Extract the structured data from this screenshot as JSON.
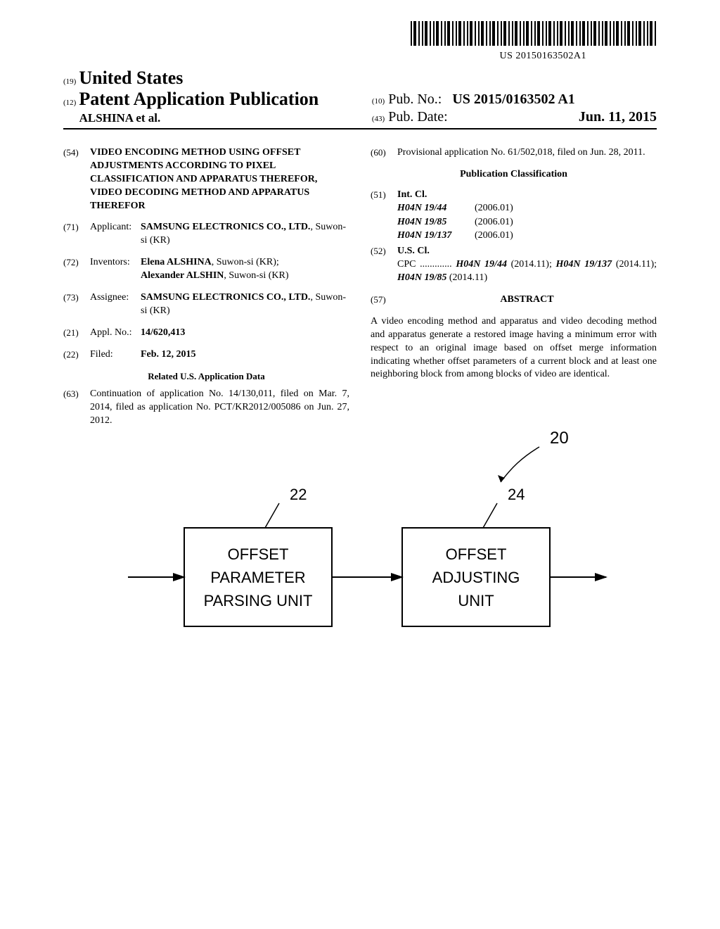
{
  "barcode_number": "US 20150163502A1",
  "header": {
    "country_code": "(19)",
    "country": "United States",
    "pubtype_code": "(12)",
    "pubtype": "Patent Application Publication",
    "authors": "ALSHINA et al.",
    "pubno_code": "(10)",
    "pubno_label": "Pub. No.:",
    "pubno_value": "US 2015/0163502 A1",
    "pubdate_code": "(43)",
    "pubdate_label": "Pub. Date:",
    "pubdate_value": "Jun. 11, 2015"
  },
  "left": {
    "title_code": "(54)",
    "title": "VIDEO ENCODING METHOD USING OFFSET ADJUSTMENTS ACCORDING TO PIXEL CLASSIFICATION AND APPARATUS THEREFOR, VIDEO DECODING METHOD AND APPARATUS THEREFOR",
    "applicant_code": "(71)",
    "applicant_label": "Applicant:",
    "applicant_name": "SAMSUNG ELECTRONICS CO., LTD.",
    "applicant_addr": ", Suwon-si (KR)",
    "inventors_code": "(72)",
    "inventors_label": "Inventors:",
    "inventor1_name": "Elena ALSHINA",
    "inventor1_addr": ", Suwon-si (KR);",
    "inventor2_name": "Alexander ALSHIN",
    "inventor2_addr": ", Suwon-si (KR)",
    "assignee_code": "(73)",
    "assignee_label": "Assignee:",
    "assignee_name": "SAMSUNG ELECTRONICS CO., LTD.",
    "assignee_addr": ", Suwon-si (KR)",
    "applno_code": "(21)",
    "applno_label": "Appl. No.:",
    "applno_value": "14/620,413",
    "filed_code": "(22)",
    "filed_label": "Filed:",
    "filed_value": "Feb. 12, 2015",
    "related_heading": "Related U.S. Application Data",
    "continuation_code": "(63)",
    "continuation_text": "Continuation of application No. 14/130,011, filed on Mar. 7, 2014, filed as application No. PCT/KR2012/005086 on Jun. 27, 2012."
  },
  "right": {
    "provisional_code": "(60)",
    "provisional_text": "Provisional application No. 61/502,018, filed on Jun. 28, 2011.",
    "classification_heading": "Publication Classification",
    "intcl_code": "(51)",
    "intcl_label": "Int. Cl.",
    "intcl": [
      {
        "code": "H04N 19/44",
        "ver": "(2006.01)"
      },
      {
        "code": "H04N 19/85",
        "ver": "(2006.01)"
      },
      {
        "code": "H04N 19/137",
        "ver": "(2006.01)"
      }
    ],
    "uscl_code": "(52)",
    "uscl_label": "U.S. Cl.",
    "cpc_prefix": "CPC .............",
    "cpc_1": "H04N 19/44",
    "cpc_1v": " (2014.11); ",
    "cpc_2": "H04N 19/137",
    "cpc_2v": " (2014.11); ",
    "cpc_3": "H04N 19/85",
    "cpc_3v": " (2014.11)",
    "abstract_code": "(57)",
    "abstract_label": "ABSTRACT",
    "abstract_text": "A video encoding method and apparatus and video decoding method and apparatus generate a restored image having a minimum error with respect to an original image based on offset merge information indicating whether offset parameters of a current block and at least one neighboring block from among blocks of video are identical."
  },
  "figure": {
    "ref_system": "20",
    "box1_ref": "22",
    "box1_line1": "OFFSET",
    "box1_line2": "PARAMETER",
    "box1_line3": "PARSING UNIT",
    "box2_ref": "24",
    "box2_line1": "OFFSET",
    "box2_line2": "ADJUSTING",
    "box2_line3": "UNIT",
    "stroke_color": "#000000",
    "stroke_width": 2,
    "font_family": "Arial, Helvetica, sans-serif",
    "label_fontsize": 22
  }
}
